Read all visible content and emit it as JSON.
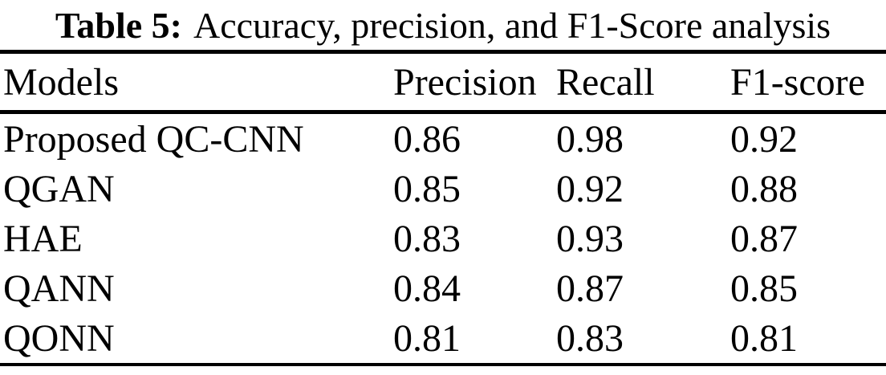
{
  "caption": {
    "label": "Table 5:",
    "text": "Accuracy, precision, and F1-Score analysis"
  },
  "columns": [
    "Models",
    "Precision",
    "Recall",
    "F1-score"
  ],
  "rows": [
    {
      "model": "Proposed QC-CNN",
      "precision": "0.86",
      "recall": "0.98",
      "f1": "0.92"
    },
    {
      "model": "QGAN",
      "precision": "0.85",
      "recall": "0.92",
      "f1": "0.88"
    },
    {
      "model": "HAE",
      "precision": "0.83",
      "recall": "0.93",
      "f1": "0.87"
    },
    {
      "model": "QANN",
      "precision": "0.84",
      "recall": "0.87",
      "f1": "0.85"
    },
    {
      "model": "QONN",
      "precision": "0.81",
      "recall": "0.83",
      "f1": "0.81"
    }
  ],
  "colors": {
    "text": "#000000",
    "rule": "#000000",
    "background": "#ffffff"
  },
  "chart_data": {
    "type": "table",
    "title": "Table 5: Accuracy, precision, and F1-Score analysis",
    "columns": [
      "Models",
      "Precision",
      "Recall",
      "F1-score"
    ],
    "cells": [
      [
        "Proposed QC-CNN",
        0.86,
        0.98,
        0.92
      ],
      [
        "QGAN",
        0.85,
        0.92,
        0.88
      ],
      [
        "HAE",
        0.83,
        0.93,
        0.87
      ],
      [
        "QANN",
        0.84,
        0.87,
        0.85
      ],
      [
        "QONN",
        0.81,
        0.83,
        0.81
      ]
    ]
  }
}
